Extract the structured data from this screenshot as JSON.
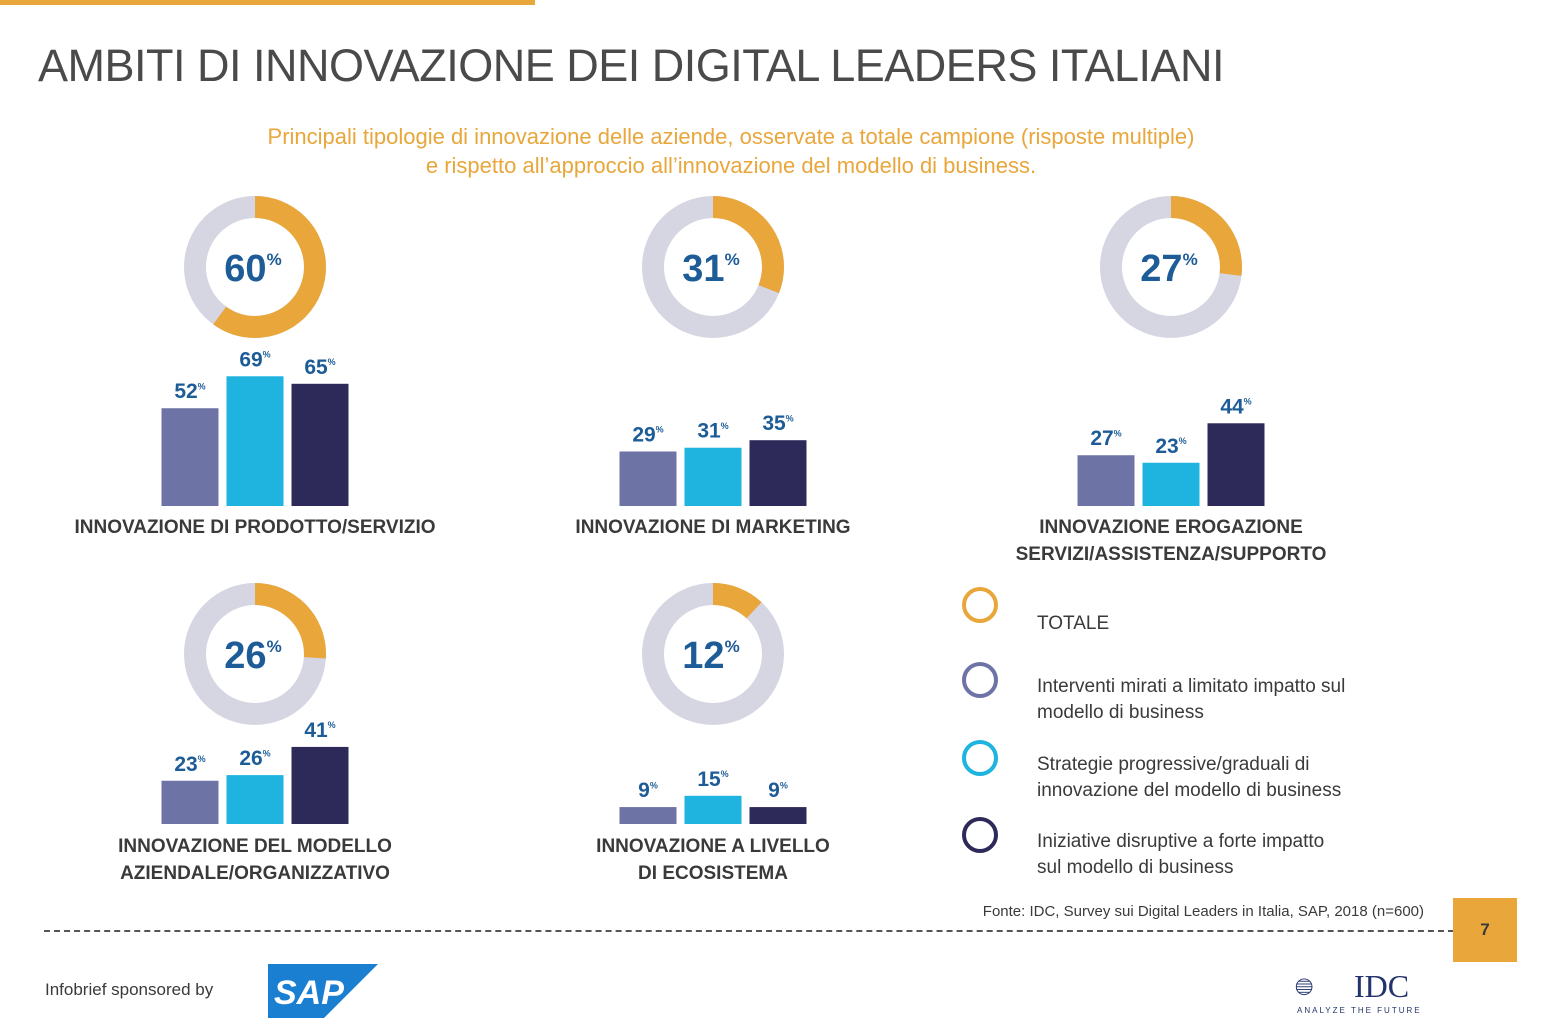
{
  "header": {
    "title": "AMBITI DI INNOVAZIONE DEI DIGITAL LEADERS ITALIANI",
    "subtitle_line1": "Principali tipologie di innovazione delle aziende, osservate a totale campione (risposte multiple)",
    "subtitle_line2": "e rispetto all’approccio all’innovazione del modello di business."
  },
  "colors": {
    "totale": "#e8a63b",
    "donut_track": "#d5d6e2",
    "interventi": "#6e73a6",
    "strategie": "#1fb3e0",
    "iniziative": "#2d2a5a",
    "value_text": "#1d5c97"
  },
  "chart_data": {
    "type": "bar",
    "unit": "%",
    "categories": [
      {
        "label_lines": [
          "INNOVAZIONE DI PRODOTTO/SERVIZIO"
        ],
        "totale": 60,
        "values": [
          52,
          69,
          65
        ]
      },
      {
        "label_lines": [
          "INNOVAZIONE DI MARKETING"
        ],
        "totale": 31,
        "values": [
          29,
          31,
          35
        ]
      },
      {
        "label_lines": [
          "INNOVAZIONE EROGAZIONE",
          "SERVIZI/ASSISTENZA/SUPPORTO"
        ],
        "totale": 27,
        "values": [
          27,
          23,
          44
        ]
      },
      {
        "label_lines": [
          "INNOVAZIONE DEL MODELLO",
          "AZIENDALE/ORGANIZZATIVO"
        ],
        "totale": 26,
        "values": [
          23,
          26,
          41
        ]
      },
      {
        "label_lines": [
          "INNOVAZIONE A LIVELLO",
          "DI ECOSISTEMA"
        ],
        "totale": 12,
        "values": [
          9,
          15,
          9
        ]
      }
    ],
    "series_order": [
      "Interventi mirati a limitato impatto sul modello di business",
      "Strategie progressive/graduali di innovazione del modello di business",
      "Iniziative disruptive a forte impatto sul modello di business"
    ]
  },
  "legend": [
    {
      "key": "totale",
      "lines": [
        "TOTALE"
      ]
    },
    {
      "key": "interventi",
      "lines": [
        "Interventi mirati a limitato impatto sul",
        "modello di business"
      ]
    },
    {
      "key": "strategie",
      "lines": [
        "Strategie progressive/graduali di",
        "innovazione del modello di business"
      ]
    },
    {
      "key": "iniziative",
      "lines": [
        "Iniziative disruptive a forte impatto",
        "sul modello di business"
      ]
    }
  ],
  "footer": {
    "source": "Fonte: IDC, Survey sui Digital Leaders in Italia, SAP, 2018 (n=600)",
    "page_number": "7",
    "sponsor_text": "Infobrief sponsored by",
    "sap_logo": "SAP",
    "idc_logo": "IDC",
    "idc_tagline": "ANALYZE THE FUTURE"
  }
}
